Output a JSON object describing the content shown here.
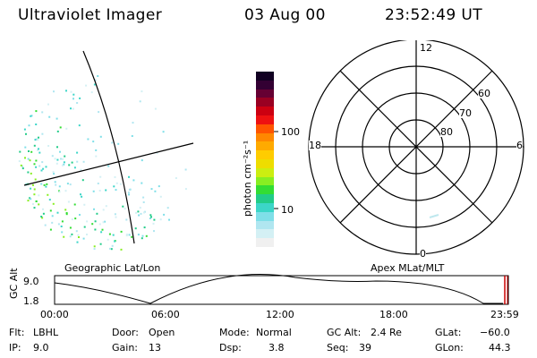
{
  "header": {
    "instrument": "Ultraviolet Imager",
    "date": "03 Aug 00",
    "time": "23:52:49 UT"
  },
  "geo_panel": {
    "label": "Geographic Lat/Lon"
  },
  "colorbar": {
    "unit_label": "photon cm⁻²s⁻¹",
    "tick_100": "100",
    "tick_10": "10",
    "colors": [
      "#f0f0f0",
      "#d4f0f4",
      "#b0e6f0",
      "#7fdfe8",
      "#3cd6c8",
      "#22cc88",
      "#33dd33",
      "#88ee22",
      "#ccee11",
      "#eedd00",
      "#ffcc00",
      "#ffaa00",
      "#ff8800",
      "#ff5500",
      "#ee1111",
      "#cc0011",
      "#990022",
      "#660033",
      "#330033",
      "#110022"
    ]
  },
  "polar_panel": {
    "label": "Apex MLat/MLT",
    "mlt_12": "12",
    "mlt_18": "18",
    "mlt_6": "6",
    "mlt_0": "0",
    "mlat_60": "60",
    "mlat_70": "70",
    "mlat_80": "80"
  },
  "altitude_plot": {
    "ylabel": "GC Alt",
    "ytick_top": "9.0",
    "ytick_bottom": "1.8",
    "xticks": [
      "00:00",
      "06:00",
      "12:00",
      "18:00",
      "23:59"
    ]
  },
  "status": {
    "filter_label": "Flt:",
    "filter_value": "LBHL",
    "ip_label": "IP:",
    "ip_value": "9.0",
    "door_label": "Door:",
    "door_value": "Open",
    "gain_label": "Gain:",
    "gain_value": "13",
    "mode_label": "Mode:",
    "mode_value": "Normal",
    "dsp_label": "Dsp:",
    "dsp_value": "3.8",
    "gcalt_label": "GC Alt:",
    "gcalt_value": "2.4 Re",
    "seq_label": "Seq:",
    "seq_value": "39",
    "glat_label": "GLat:",
    "glat_value": "−60.0",
    "glon_label": "GLon:",
    "glon_value": "44.3"
  }
}
